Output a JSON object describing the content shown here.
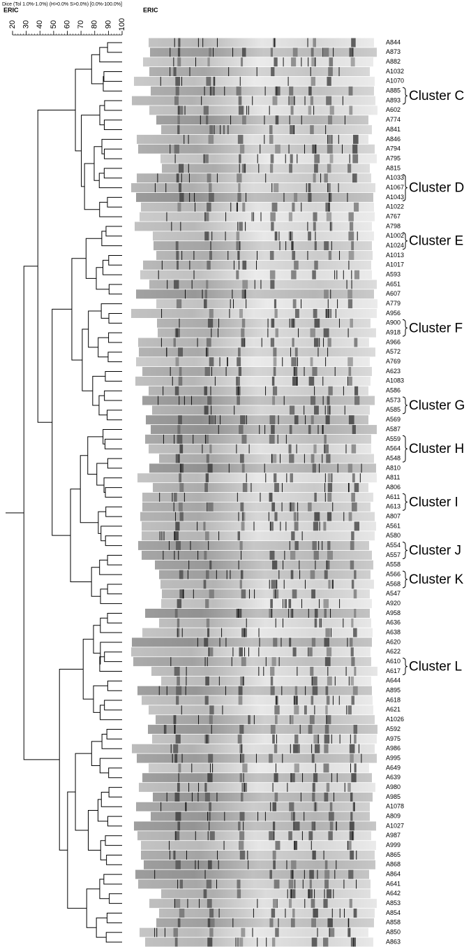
{
  "header": {
    "caption": "Dice (Tol 1.0%-1.0%) (H>0.0% S>0.0%) [0.0%-100.0%]",
    "left_title": "ERIC",
    "right_title": "ERIC"
  },
  "scale": {
    "ticks": [
      20,
      30,
      40,
      50,
      60,
      70,
      80,
      90,
      100
    ]
  },
  "lanes": [
    "A844",
    "A873",
    "A882",
    "A1032",
    "A1070",
    "A885",
    "A893",
    "A602",
    "A774",
    "A841",
    "A846",
    "A794",
    "A795",
    "A815",
    "A1033",
    "A1067",
    "A1043",
    "A1022",
    "A767",
    "A798",
    "A1002",
    "A1024",
    "A1013",
    "A1017",
    "A593",
    "A651",
    "A607",
    "A779",
    "A956",
    "A900",
    "A918",
    "A966",
    "A572",
    "A769",
    "A623",
    "A1083",
    "A586",
    "A573",
    "A585",
    "A569",
    "A587",
    "A559",
    "A564",
    "A548",
    "A810",
    "A811",
    "A806",
    "A611",
    "A613",
    "A807",
    "A561",
    "A580",
    "A554",
    "A557",
    "A558",
    "A566",
    "A568",
    "A547",
    "A920",
    "A958",
    "A636",
    "A638",
    "A620",
    "A622",
    "A610",
    "A617",
    "A644",
    "A895",
    "A618",
    "A621",
    "A1026",
    "A592",
    "A975",
    "A986",
    "A995",
    "A649",
    "A639",
    "A980",
    "A985",
    "A1078",
    "A809",
    "A1027",
    "A987",
    "A999",
    "A865",
    "A868",
    "A864",
    "A641",
    "A642",
    "A853",
    "A854",
    "A858",
    "A850",
    "A863"
  ],
  "clusters": [
    "Cluster C",
    "Cluster D",
    "Cluster E",
    "Cluster F",
    "Cluster G",
    "Cluster H",
    "Cluster I",
    "Cluster J",
    "Cluster K",
    "Cluster L"
  ]
}
